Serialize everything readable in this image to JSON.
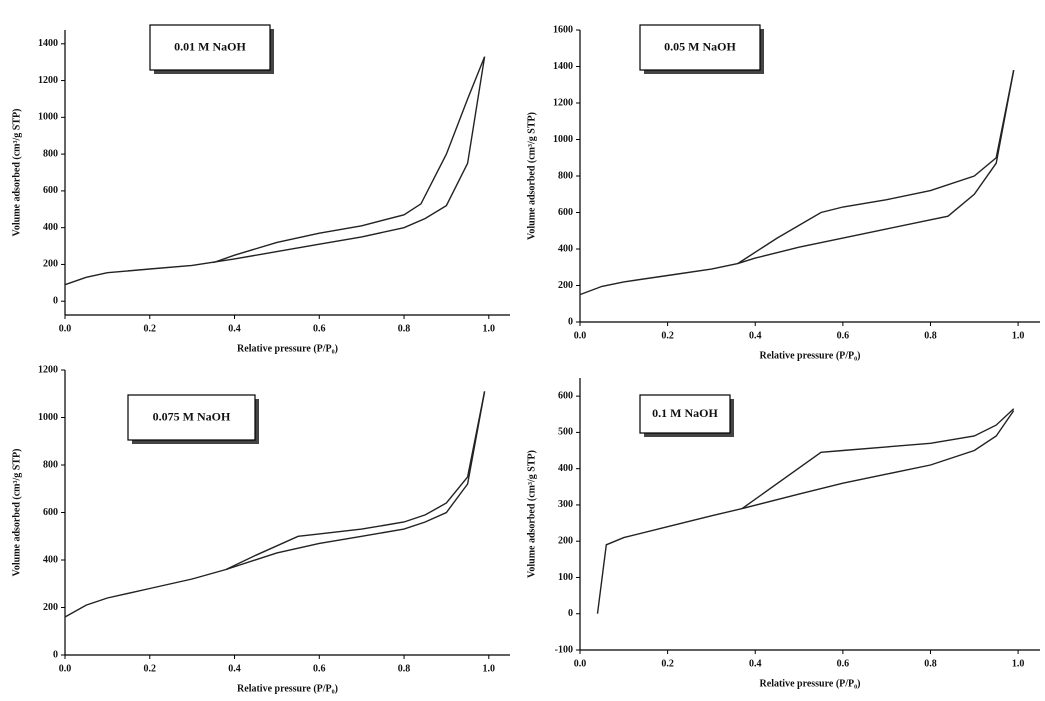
{
  "chart_data": [
    {
      "type": "line",
      "title": "0.01 M NaOH",
      "xlabel": "Relative pressure (P/P₀)",
      "ylabel": "Volume adsorbed (cm³/g STP)",
      "xlim": [
        0,
        1.05
      ],
      "ylim": [
        -75,
        1475
      ],
      "xticks": [
        {
          "value": 0,
          "label": "0.0"
        },
        0.2,
        0.4,
        0.6,
        0.8,
        {
          "value": 1,
          "label": "1.0"
        }
      ],
      "yticks": [
        0,
        200,
        400,
        600,
        800,
        1000,
        1200,
        1400
      ],
      "series": [
        {
          "color": "#222",
          "x": [
            0,
            0.05,
            0.1,
            0.2,
            0.3,
            0.4,
            0.5,
            0.6,
            0.7,
            0.8,
            0.85,
            0.9,
            0.95,
            0.99
          ],
          "values": [
            90,
            130,
            155,
            175,
            195,
            230,
            270,
            310,
            350,
            400,
            450,
            520,
            750,
            1330
          ]
        },
        {
          "color": "#222",
          "x": [
            0.35,
            0.4,
            0.5,
            0.6,
            0.7,
            0.8,
            0.84,
            0.9,
            0.95,
            0.99
          ],
          "values": [
            210,
            250,
            320,
            370,
            410,
            470,
            530,
            800,
            1100,
            1330
          ]
        }
      ]
    },
    {
      "type": "line",
      "title": "0.05 M NaOH",
      "xlabel": "Relative pressure (P/P₀)",
      "ylabel": "Volume adsorbed (cm³/g STP)",
      "xlim": [
        0,
        1.05
      ],
      "ylim": [
        0,
        1600
      ],
      "xticks": [
        {
          "value": 0,
          "label": "0.0"
        },
        0.2,
        0.4,
        0.6,
        0.8,
        {
          "value": 1,
          "label": "1.0"
        }
      ],
      "yticks": [
        0,
        200,
        400,
        600,
        800,
        1000,
        1200,
        1400,
        1600
      ],
      "series": [
        {
          "color": "#222",
          "x": [
            0,
            0.05,
            0.1,
            0.2,
            0.3,
            0.36,
            0.4,
            0.5,
            0.6,
            0.7,
            0.8,
            0.84,
            0.9,
            0.95,
            0.99
          ],
          "values": [
            150,
            195,
            220,
            255,
            290,
            320,
            350,
            410,
            460,
            510,
            560,
            580,
            700,
            870,
            1380
          ]
        },
        {
          "color": "#222",
          "x": [
            0.36,
            0.45,
            0.55,
            0.6,
            0.7,
            0.8,
            0.9,
            0.95,
            0.99
          ],
          "values": [
            320,
            460,
            600,
            630,
            670,
            720,
            800,
            900,
            1380
          ]
        }
      ]
    },
    {
      "type": "line",
      "title": "0.075 M NaOH",
      "xlabel": "Relative pressure (P/P₀)",
      "ylabel": "Volume adsorbed (cm³/g STP)",
      "xlim": [
        0,
        1.05
      ],
      "ylim": [
        0,
        1200
      ],
      "xticks": [
        {
          "value": 0,
          "label": "0.0"
        },
        0.2,
        0.4,
        0.6,
        0.8,
        {
          "value": 1,
          "label": "1.0"
        }
      ],
      "yticks": [
        0,
        200,
        400,
        600,
        800,
        1000,
        1200
      ],
      "series": [
        {
          "color": "#222",
          "x": [
            0,
            0.05,
            0.1,
            0.2,
            0.3,
            0.38,
            0.5,
            0.6,
            0.7,
            0.8,
            0.85,
            0.9,
            0.95,
            0.99
          ],
          "values": [
            160,
            210,
            240,
            280,
            320,
            360,
            430,
            470,
            500,
            530,
            560,
            600,
            720,
            1110
          ]
        },
        {
          "color": "#222",
          "x": [
            0.38,
            0.45,
            0.55,
            0.6,
            0.7,
            0.8,
            0.85,
            0.9,
            0.95,
            0.99
          ],
          "values": [
            360,
            420,
            500,
            510,
            530,
            560,
            590,
            640,
            750,
            1110
          ]
        }
      ]
    },
    {
      "type": "line",
      "title": "0.1 M NaOH",
      "xlabel": "Relative pressure (P/P₀)",
      "ylabel": "Volume adsorbed (cm³/g STP)",
      "xlim": [
        0,
        1.05
      ],
      "ylim": [
        -100,
        650
      ],
      "xticks": [
        {
          "value": 0,
          "label": "0.0"
        },
        0.2,
        0.4,
        0.6,
        0.8,
        {
          "value": 1,
          "label": "1.0"
        }
      ],
      "yticks": [
        -100,
        0,
        100,
        200,
        300,
        400,
        500,
        600
      ],
      "series": [
        {
          "color": "#222",
          "x": [
            0.04,
            0.06,
            0.1,
            0.2,
            0.3,
            0.37,
            0.5,
            0.6,
            0.7,
            0.8,
            0.9,
            0.95,
            0.99
          ],
          "values": [
            0,
            190,
            210,
            240,
            270,
            290,
            330,
            360,
            385,
            410,
            450,
            490,
            560
          ]
        },
        {
          "color": "#222",
          "x": [
            0.37,
            0.55,
            0.6,
            0.7,
            0.8,
            0.9,
            0.95,
            0.99
          ],
          "values": [
            290,
            445,
            450,
            460,
            470,
            490,
            520,
            565
          ]
        }
      ]
    }
  ]
}
